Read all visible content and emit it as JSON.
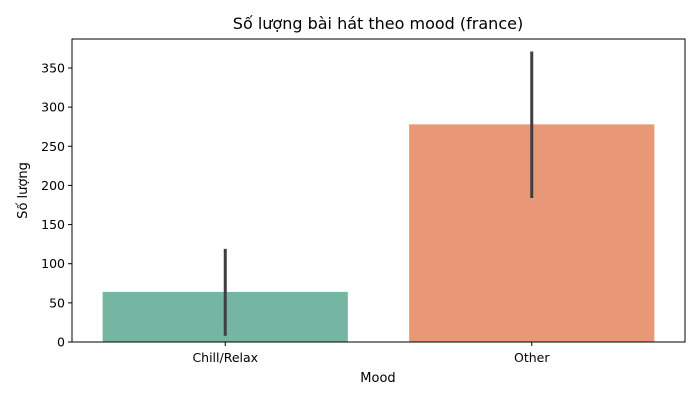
{
  "chart_data": {
    "type": "bar",
    "title": "Số lượng bài hát theo mood (france)",
    "xlabel": "Mood",
    "ylabel": "Số lượng",
    "categories": [
      "Chill/Relax",
      "Other"
    ],
    "values": [
      64,
      278
    ],
    "error_bars": [
      [
        8,
        119
      ],
      [
        184,
        371
      ]
    ],
    "colors": [
      "#74b6a1",
      "#e99877"
    ],
    "error_bar_color": "#3f3f3f",
    "ylim": [
      0,
      387
    ],
    "yticks": [
      0,
      50,
      100,
      150,
      200,
      250,
      300,
      350
    ],
    "grid": false,
    "legend": "none"
  }
}
